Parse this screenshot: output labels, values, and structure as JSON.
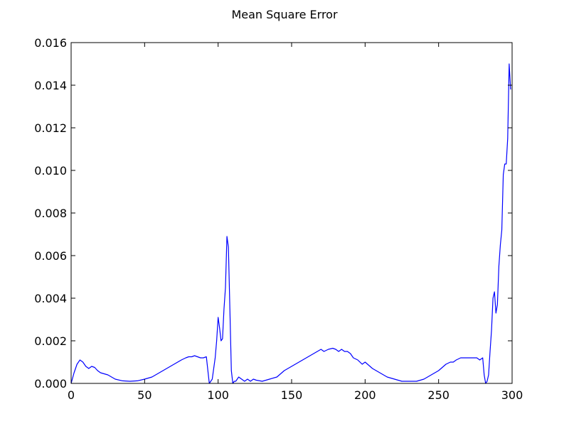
{
  "chart_data": {
    "type": "line",
    "title": "Mean Square Error",
    "xlabel": "",
    "ylabel": "",
    "xlim": [
      0,
      300
    ],
    "ylim": [
      0,
      0.016
    ],
    "x_ticks": [
      0,
      50,
      100,
      150,
      200,
      250,
      300
    ],
    "x_tick_labels": [
      "0",
      "50",
      "100",
      "150",
      "200",
      "250",
      "300"
    ],
    "y_ticks": [
      0,
      0.002,
      0.004,
      0.006,
      0.008,
      0.01,
      0.012,
      0.014,
      0.016
    ],
    "y_tick_labels": [
      "0.000",
      "0.002",
      "0.004",
      "0.006",
      "0.008",
      "0.010",
      "0.012",
      "0.014",
      "0.016"
    ],
    "grid": false,
    "line_color": "#0000ff",
    "series": [
      {
        "x": [
          0,
          2,
          4,
          6,
          8,
          10,
          12,
          14,
          16,
          18,
          20,
          25,
          30,
          35,
          40,
          45,
          50,
          55,
          60,
          65,
          70,
          75,
          78,
          80,
          82,
          84,
          86,
          88,
          90,
          92,
          94,
          96,
          98,
          99,
          100,
          101,
          102,
          103,
          104,
          105,
          106,
          107,
          108,
          109,
          110,
          111,
          112,
          114,
          116,
          118,
          120,
          122,
          124,
          126,
          130,
          135,
          140,
          145,
          150,
          155,
          160,
          165,
          170,
          172,
          175,
          178,
          180,
          182,
          184,
          186,
          188,
          190,
          192,
          195,
          198,
          200,
          205,
          210,
          215,
          220,
          225,
          230,
          235,
          240,
          245,
          250,
          255,
          258,
          260,
          262,
          265,
          270,
          272,
          274,
          276,
          278,
          280,
          281,
          282,
          283,
          284,
          285,
          286,
          287,
          288,
          289,
          290,
          291,
          292,
          293,
          294,
          295,
          296,
          297,
          298,
          299
        ],
        "y": [
          0.0,
          0.0005,
          0.0009,
          0.0011,
          0.001,
          0.0008,
          0.0007,
          0.0008,
          0.00075,
          0.0006,
          0.0005,
          0.0004,
          0.0002,
          0.00012,
          0.0001,
          0.00012,
          0.0002,
          0.0003,
          0.0005,
          0.0007,
          0.0009,
          0.0011,
          0.0012,
          0.00125,
          0.00125,
          0.0013,
          0.00125,
          0.0012,
          0.0012,
          0.00125,
          0.0,
          0.0002,
          0.0012,
          0.002,
          0.0031,
          0.0026,
          0.002,
          0.0021,
          0.0035,
          0.0045,
          0.0069,
          0.0064,
          0.0035,
          0.0006,
          0.0,
          0.0001,
          0.0001,
          0.0003,
          0.0002,
          0.0001,
          0.0002,
          0.0001,
          0.0002,
          0.00015,
          0.0001,
          0.0002,
          0.0003,
          0.0006,
          0.0008,
          0.001,
          0.0012,
          0.0014,
          0.0016,
          0.0015,
          0.0016,
          0.00165,
          0.0016,
          0.0015,
          0.0016,
          0.0015,
          0.0015,
          0.0014,
          0.0012,
          0.0011,
          0.0009,
          0.001,
          0.0007,
          0.0005,
          0.0003,
          0.0002,
          0.0001,
          0.0001,
          0.0001,
          0.0002,
          0.0004,
          0.0006,
          0.0009,
          0.001,
          0.001,
          0.0011,
          0.0012,
          0.0012,
          0.0012,
          0.0012,
          0.0012,
          0.0011,
          0.0012,
          0.0004,
          0.0,
          0.0001,
          0.0004,
          0.0015,
          0.0025,
          0.004,
          0.0043,
          0.0033,
          0.0037,
          0.0055,
          0.0065,
          0.0072,
          0.0098,
          0.0103,
          0.0103,
          0.0115,
          0.015,
          0.0138
        ]
      }
    ]
  }
}
